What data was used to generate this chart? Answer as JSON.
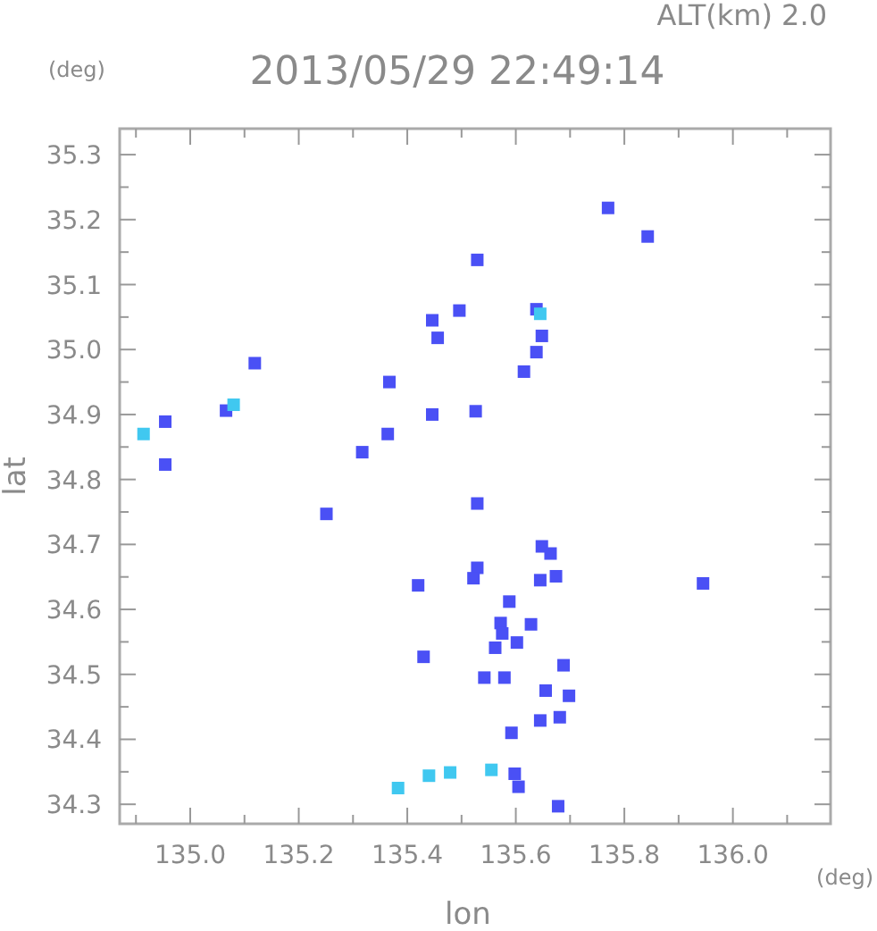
{
  "chart_data": {
    "type": "scatter",
    "title": "2013/05/29 22:49:14",
    "xlabel": "lon",
    "ylabel": "lat",
    "annotations": [
      "ALT(km) 2.0",
      "(deg)",
      "(deg)"
    ],
    "xlim": [
      134.87,
      136.18
    ],
    "ylim": [
      34.27,
      35.34
    ],
    "xticks": [
      {
        "value": 134.9,
        "label": null
      },
      {
        "value": 135.0,
        "label": "135.0"
      },
      {
        "value": 135.1,
        "label": null
      },
      {
        "value": 135.2,
        "label": "135.2"
      },
      {
        "value": 135.3,
        "label": null
      },
      {
        "value": 135.4,
        "label": "135.4"
      },
      {
        "value": 135.5,
        "label": null
      },
      {
        "value": 135.6,
        "label": "135.6"
      },
      {
        "value": 135.7,
        "label": null
      },
      {
        "value": 135.8,
        "label": "135.8"
      },
      {
        "value": 135.9,
        "label": null
      },
      {
        "value": 136.0,
        "label": "136.0"
      },
      {
        "value": 136.1,
        "label": null
      }
    ],
    "yticks": [
      34.3,
      {
        "value": 34.35,
        "label": null
      },
      34.4,
      {
        "value": 34.45,
        "label": null
      },
      34.5,
      {
        "value": 34.55,
        "label": null
      },
      34.6,
      {
        "value": 34.65,
        "label": null
      },
      34.7,
      {
        "value": 34.75,
        "label": null
      },
      34.8,
      {
        "value": 34.85,
        "label": null
      },
      34.9,
      {
        "value": 34.95,
        "label": null
      },
      {
        "value": 35.0,
        "label": "35.0"
      },
      {
        "value": 35.05,
        "label": null
      },
      35.1,
      {
        "value": 35.15,
        "label": null
      },
      35.2,
      {
        "value": 35.25,
        "label": null
      },
      35.3
    ],
    "marker": "square",
    "grid": false,
    "series": [
      {
        "color": "#4a50f5",
        "x": [
          134.954,
          134.954,
          135.066,
          135.119,
          135.317,
          135.364,
          135.367,
          135.446,
          135.446,
          135.456,
          135.496,
          135.251,
          135.638,
          135.648,
          135.638,
          135.615,
          135.843,
          135.529,
          135.77,
          135.945,
          135.526,
          135.529,
          135.648,
          135.664,
          135.529,
          135.522,
          135.645,
          135.674,
          135.42,
          135.588,
          135.572,
          135.575,
          135.602,
          135.628,
          135.562,
          135.43,
          135.688,
          135.579,
          135.542,
          135.655,
          135.698,
          135.681,
          135.645,
          135.592,
          135.598,
          135.605,
          135.678
        ],
        "values": [
          34.889,
          34.823,
          34.906,
          34.979,
          34.842,
          34.87,
          34.95,
          34.9,
          35.045,
          35.018,
          35.06,
          34.747,
          35.062,
          35.021,
          34.996,
          34.966,
          35.174,
          35.138,
          35.218,
          34.64,
          34.905,
          34.763,
          34.697,
          34.686,
          34.664,
          34.648,
          34.645,
          34.651,
          34.637,
          34.612,
          34.579,
          34.563,
          34.549,
          34.577,
          34.541,
          34.527,
          34.514,
          34.495,
          34.495,
          34.475,
          34.467,
          34.434,
          34.429,
          34.41,
          34.347,
          34.327,
          34.297
        ]
      },
      {
        "color": "#40c8f0",
        "x": [
          134.914,
          135.08,
          135.645,
          135.44,
          135.479,
          135.383,
          135.555
        ],
        "values": [
          34.87,
          34.915,
          35.055,
          34.344,
          34.349,
          34.325,
          34.353
        ]
      }
    ]
  }
}
